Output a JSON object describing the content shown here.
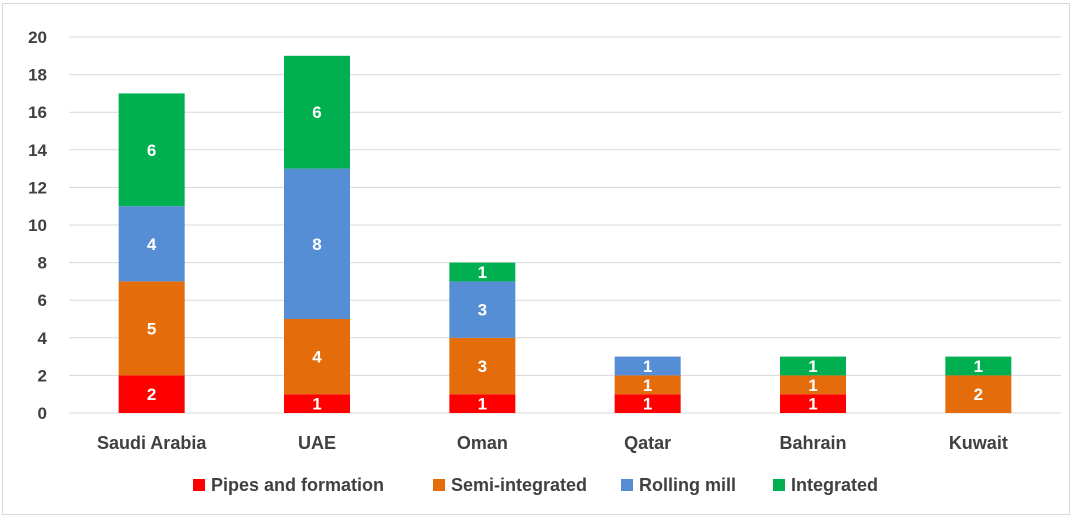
{
  "chart_data": {
    "type": "bar",
    "stacked": true,
    "categories": [
      "Saudi Arabia",
      "UAE",
      "Oman",
      "Qatar",
      "Bahrain",
      "Kuwait"
    ],
    "series": [
      {
        "name": "Pipes and formation",
        "color": "#ff0000",
        "values": [
          2,
          1,
          1,
          1,
          1,
          0
        ]
      },
      {
        "name": "Semi-integrated",
        "color": "#e46c0a",
        "values": [
          5,
          4,
          3,
          1,
          1,
          2
        ]
      },
      {
        "name": "Rolling mill",
        "color": "#558ed5",
        "values": [
          4,
          8,
          3,
          1,
          0,
          0
        ]
      },
      {
        "name": "Integrated",
        "color": "#00b050",
        "values": [
          6,
          6,
          1,
          0,
          1,
          1
        ]
      }
    ],
    "ylim": [
      0,
      20
    ],
    "yticks": [
      0,
      2,
      4,
      6,
      8,
      10,
      12,
      14,
      16,
      18,
      20
    ],
    "grid": true,
    "legend_position": "bottom",
    "data_labels": true
  }
}
